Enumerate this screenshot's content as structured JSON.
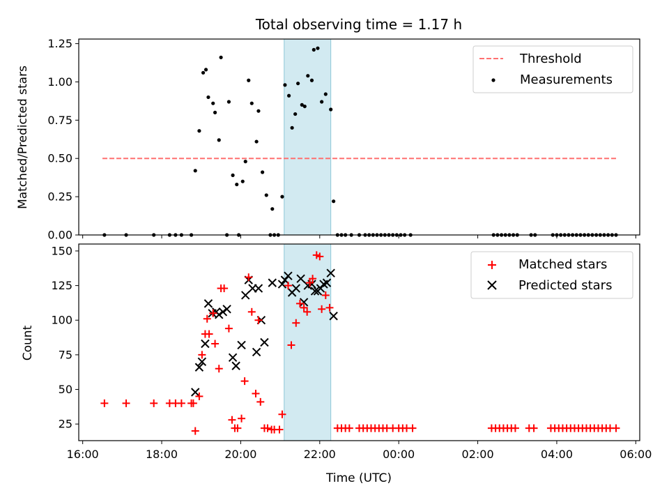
{
  "chart_data": {
    "type": "scatter",
    "title": "Total observing time = 1.17 h",
    "xlabel": "Time (UTC)",
    "x_unit": "hours since 16:00 UTC",
    "xlim": [
      15.9,
      30.1
    ],
    "xticks": [
      {
        "v": 16,
        "label": "16:00"
      },
      {
        "v": 18,
        "label": "18:00"
      },
      {
        "v": 20,
        "label": "20:00"
      },
      {
        "v": 22,
        "label": "22:00"
      },
      {
        "v": 24,
        "label": "00:00"
      },
      {
        "v": 26,
        "label": "02:00"
      },
      {
        "v": 28,
        "label": "04:00"
      },
      {
        "v": 30,
        "label": "06:00"
      }
    ],
    "highlight_span": [
      21.1,
      22.28
    ],
    "highlight_color": "#add8e6",
    "top": {
      "ylabel": "Matched/Predicted stars",
      "ylim": [
        0,
        1.28
      ],
      "yticks": [
        "0.00",
        "0.25",
        "0.50",
        "0.75",
        "1.00",
        "1.25"
      ],
      "threshold": {
        "name": "Threshold",
        "value": 0.5,
        "x_range": [
          16.5,
          29.55
        ],
        "color": "#ff7070"
      },
      "measurements": {
        "name": "Measurements",
        "color": "#000000",
        "points": [
          [
            16.55,
            0
          ],
          [
            17.1,
            0
          ],
          [
            17.8,
            0
          ],
          [
            18.2,
            0
          ],
          [
            18.35,
            0
          ],
          [
            18.5,
            0
          ],
          [
            18.75,
            0
          ],
          [
            18.85,
            0.42
          ],
          [
            18.95,
            0.68
          ],
          [
            19.05,
            1.06
          ],
          [
            19.12,
            1.08
          ],
          [
            19.18,
            0.9
          ],
          [
            19.3,
            0.86
          ],
          [
            19.35,
            0.8
          ],
          [
            19.45,
            0.62
          ],
          [
            19.5,
            1.16
          ],
          [
            19.65,
            0
          ],
          [
            19.7,
            0.87
          ],
          [
            19.8,
            0.39
          ],
          [
            19.9,
            0.33
          ],
          [
            19.95,
            0
          ],
          [
            20.05,
            0.35
          ],
          [
            20.12,
            0.48
          ],
          [
            20.2,
            1.01
          ],
          [
            20.28,
            0.86
          ],
          [
            20.4,
            0.61
          ],
          [
            20.45,
            0.81
          ],
          [
            20.55,
            0.41
          ],
          [
            20.65,
            0.26
          ],
          [
            20.75,
            0
          ],
          [
            20.8,
            0.17
          ],
          [
            20.85,
            0
          ],
          [
            20.95,
            0
          ],
          [
            21.05,
            0.25
          ],
          [
            21.12,
            0.98
          ],
          [
            21.22,
            0.91
          ],
          [
            21.3,
            0.7
          ],
          [
            21.38,
            0.79
          ],
          [
            21.45,
            0.99
          ],
          [
            21.55,
            0.85
          ],
          [
            21.62,
            0.84
          ],
          [
            21.7,
            1.04
          ],
          [
            21.8,
            1.01
          ],
          [
            21.85,
            1.21
          ],
          [
            21.95,
            1.22
          ],
          [
            22.05,
            0.87
          ],
          [
            22.15,
            0.92
          ],
          [
            22.28,
            0.82
          ],
          [
            22.35,
            0.22
          ],
          [
            22.45,
            0
          ],
          [
            22.55,
            0
          ],
          [
            22.65,
            0
          ],
          [
            22.8,
            0
          ],
          [
            23.0,
            0
          ],
          [
            23.15,
            0
          ],
          [
            23.25,
            0
          ],
          [
            23.35,
            0
          ],
          [
            23.45,
            0
          ],
          [
            23.55,
            0
          ],
          [
            23.65,
            0
          ],
          [
            23.75,
            0
          ],
          [
            23.85,
            0
          ],
          [
            23.95,
            0
          ],
          [
            24.05,
            0
          ],
          [
            24.15,
            0
          ],
          [
            24.3,
            0
          ],
          [
            26.4,
            0
          ],
          [
            26.5,
            0
          ],
          [
            26.6,
            0
          ],
          [
            26.7,
            0
          ],
          [
            26.8,
            0
          ],
          [
            26.9,
            0
          ],
          [
            27.0,
            0
          ],
          [
            27.35,
            0
          ],
          [
            27.45,
            0
          ],
          [
            27.9,
            0
          ],
          [
            28.0,
            0
          ],
          [
            28.1,
            0
          ],
          [
            28.2,
            0
          ],
          [
            28.3,
            0
          ],
          [
            28.4,
            0
          ],
          [
            28.5,
            0
          ],
          [
            28.6,
            0
          ],
          [
            28.7,
            0
          ],
          [
            28.8,
            0
          ],
          [
            28.9,
            0
          ],
          [
            29.0,
            0
          ],
          [
            29.1,
            0
          ],
          [
            29.2,
            0
          ],
          [
            29.3,
            0
          ],
          [
            29.4,
            0
          ],
          [
            29.5,
            0
          ]
        ]
      }
    },
    "bottom": {
      "ylabel": "Count",
      "ylim": [
        13,
        155
      ],
      "yticks": [
        25,
        50,
        75,
        100,
        125,
        150
      ],
      "matched": {
        "name": "Matched stars",
        "color": "#ff0000",
        "points": [
          [
            16.55,
            40
          ],
          [
            17.1,
            40
          ],
          [
            17.8,
            40
          ],
          [
            18.2,
            40
          ],
          [
            18.35,
            40
          ],
          [
            18.5,
            40
          ],
          [
            18.75,
            40
          ],
          [
            18.8,
            40
          ],
          [
            18.85,
            20
          ],
          [
            18.95,
            45
          ],
          [
            19.02,
            75
          ],
          [
            19.1,
            90
          ],
          [
            19.15,
            101
          ],
          [
            19.2,
            90
          ],
          [
            19.3,
            105
          ],
          [
            19.35,
            83
          ],
          [
            19.45,
            65
          ],
          [
            19.5,
            123
          ],
          [
            19.58,
            123
          ],
          [
            19.7,
            94
          ],
          [
            19.78,
            28
          ],
          [
            19.85,
            22
          ],
          [
            19.92,
            22
          ],
          [
            20.02,
            29
          ],
          [
            20.1,
            56
          ],
          [
            20.2,
            131
          ],
          [
            20.28,
            106
          ],
          [
            20.38,
            47
          ],
          [
            20.5,
            41
          ],
          [
            20.45,
            100
          ],
          [
            20.6,
            22
          ],
          [
            20.68,
            22
          ],
          [
            20.78,
            21
          ],
          [
            20.85,
            21
          ],
          [
            20.98,
            21
          ],
          [
            21.05,
            32
          ],
          [
            21.2,
            125
          ],
          [
            21.28,
            82
          ],
          [
            21.4,
            98
          ],
          [
            21.5,
            112
          ],
          [
            21.6,
            109
          ],
          [
            21.68,
            106
          ],
          [
            21.75,
            127
          ],
          [
            21.82,
            130
          ],
          [
            21.92,
            147
          ],
          [
            22.0,
            146
          ],
          [
            22.05,
            108
          ],
          [
            22.15,
            118
          ],
          [
            22.25,
            109
          ],
          [
            22.45,
            22
          ],
          [
            22.55,
            22
          ],
          [
            22.65,
            22
          ],
          [
            22.75,
            22
          ],
          [
            23.0,
            22
          ],
          [
            23.1,
            22
          ],
          [
            23.2,
            22
          ],
          [
            23.3,
            22
          ],
          [
            23.4,
            22
          ],
          [
            23.5,
            22
          ],
          [
            23.6,
            22
          ],
          [
            23.7,
            22
          ],
          [
            23.85,
            22
          ],
          [
            24.0,
            22
          ],
          [
            24.1,
            22
          ],
          [
            24.2,
            22
          ],
          [
            24.35,
            22
          ],
          [
            26.35,
            22
          ],
          [
            26.45,
            22
          ],
          [
            26.55,
            22
          ],
          [
            26.65,
            22
          ],
          [
            26.75,
            22
          ],
          [
            26.85,
            22
          ],
          [
            26.95,
            22
          ],
          [
            27.3,
            22
          ],
          [
            27.42,
            22
          ],
          [
            27.85,
            22
          ],
          [
            27.95,
            22
          ],
          [
            28.05,
            22
          ],
          [
            28.15,
            22
          ],
          [
            28.25,
            22
          ],
          [
            28.35,
            22
          ],
          [
            28.45,
            22
          ],
          [
            28.55,
            22
          ],
          [
            28.65,
            22
          ],
          [
            28.75,
            22
          ],
          [
            28.85,
            22
          ],
          [
            28.95,
            22
          ],
          [
            29.05,
            22
          ],
          [
            29.15,
            22
          ],
          [
            29.25,
            22
          ],
          [
            29.35,
            22
          ],
          [
            29.5,
            22
          ]
        ]
      },
      "predicted": {
        "name": "Predicted stars",
        "color": "#000000",
        "points": [
          [
            18.85,
            48
          ],
          [
            18.95,
            66
          ],
          [
            19.02,
            70
          ],
          [
            19.1,
            83
          ],
          [
            19.18,
            112
          ],
          [
            19.28,
            105
          ],
          [
            19.38,
            106
          ],
          [
            19.45,
            104
          ],
          [
            19.55,
            106
          ],
          [
            19.65,
            108
          ],
          [
            19.8,
            73
          ],
          [
            19.88,
            67
          ],
          [
            20.02,
            82
          ],
          [
            20.12,
            118
          ],
          [
            20.2,
            129
          ],
          [
            20.3,
            123
          ],
          [
            20.4,
            77
          ],
          [
            20.45,
            123
          ],
          [
            20.52,
            100
          ],
          [
            20.6,
            84
          ],
          [
            20.8,
            127
          ],
          [
            21.05,
            126
          ],
          [
            21.12,
            129
          ],
          [
            21.2,
            132
          ],
          [
            21.3,
            120
          ],
          [
            21.4,
            123
          ],
          [
            21.52,
            130
          ],
          [
            21.6,
            113
          ],
          [
            21.7,
            125
          ],
          [
            21.8,
            126
          ],
          [
            21.88,
            121
          ],
          [
            21.95,
            121
          ],
          [
            22.02,
            123
          ],
          [
            22.1,
            126
          ],
          [
            22.18,
            127
          ],
          [
            22.28,
            134
          ],
          [
            22.35,
            103
          ]
        ]
      }
    }
  }
}
